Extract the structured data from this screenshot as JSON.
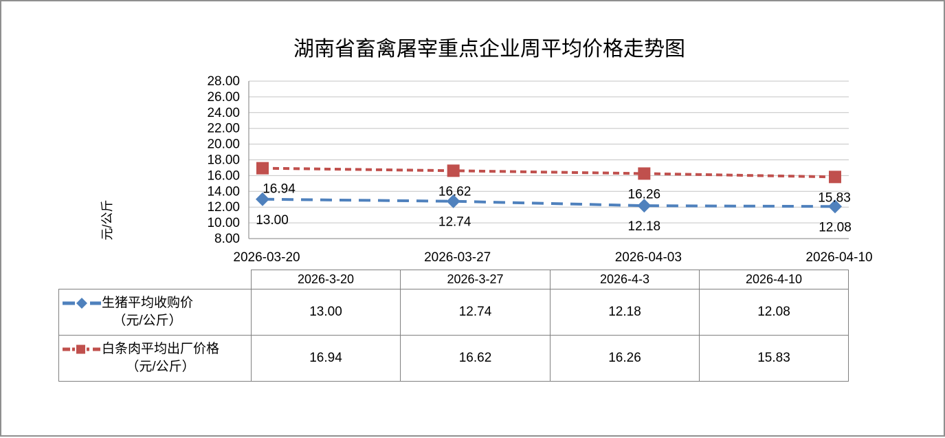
{
  "page": {
    "title": "湖南省畜禽屠宰重点企业周平均价格走势图"
  },
  "chart_data": {
    "type": "line",
    "title": "湖南省畜禽屠宰重点企业周平均价格走势图",
    "xlabel": "",
    "ylabel": "元/公斤",
    "ylim": [
      8,
      28
    ],
    "ytick_step": 2,
    "y_ticks": [
      "28.00",
      "26.00",
      "24.00",
      "22.00",
      "20.00",
      "18.00",
      "16.00",
      "14.00",
      "12.00",
      "10.00",
      "8.00"
    ],
    "x": [
      "2026-03-20",
      "2026-03-27",
      "2026-04-03",
      "2026-04-10"
    ],
    "grid": true,
    "legend_position": "left-of-data-table",
    "series": [
      {
        "id": "pig-purchase-price",
        "name": "生猪平均收购价（元/公斤）",
        "color": "#4F81BD",
        "marker": "diamond",
        "dash": "long",
        "values": [
          13.0,
          12.74,
          12.18,
          12.08
        ],
        "labels": [
          "13.00",
          "12.74",
          "12.18",
          "12.08"
        ]
      },
      {
        "id": "carcass-factory-price",
        "name": "白条肉平均出厂价格（元/公斤）",
        "color": "#C0504D",
        "marker": "square",
        "dash": "short",
        "values": [
          16.94,
          16.62,
          16.26,
          15.83
        ],
        "labels": [
          "16.94",
          "16.62",
          "16.26",
          "15.83"
        ]
      }
    ]
  },
  "table": {
    "headers": [
      "2026-3-20",
      "2026-3-27",
      "2026-4-3",
      "2026-4-10"
    ],
    "rows": [
      {
        "label_line1": "生猪平均收购价",
        "label_line2": "（元/公斤）",
        "cells": [
          "13.00",
          "12.74",
          "12.18",
          "12.08"
        ]
      },
      {
        "label_line1": "白条肉平均出厂价格",
        "label_line2": "（元/公斤）",
        "cells": [
          "16.94",
          "16.62",
          "16.26",
          "15.83"
        ]
      }
    ]
  },
  "colors": {
    "series_blue": "#4F81BD",
    "series_red": "#C0504D",
    "gridline": "#C3C3C3",
    "axis": "#9A9A9A",
    "table_border": "#7F7F7F",
    "frame_border": "#8F8F8F"
  }
}
